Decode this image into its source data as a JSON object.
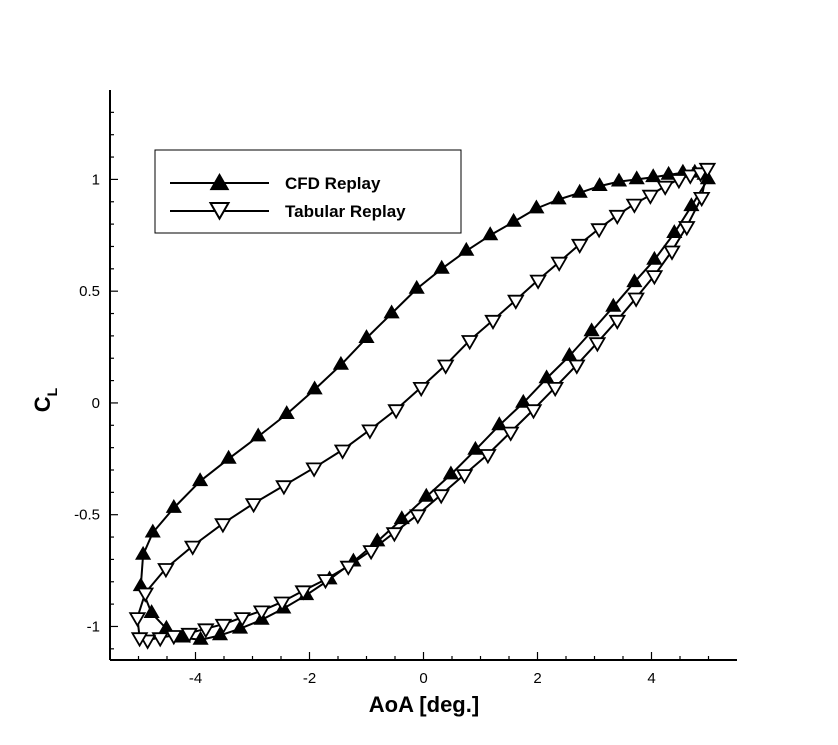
{
  "chart_data": {
    "type": "line",
    "xlabel": "AoA [deg.]",
    "ylabel": {
      "base": "C",
      "subscript": "L"
    },
    "xlim": [
      -5.5,
      5.5
    ],
    "ylim": [
      -1.15,
      1.4
    ],
    "x_ticks": [
      -4,
      -2,
      0,
      2,
      4
    ],
    "x_tick_labels": [
      "-4",
      "-2",
      "0",
      "2",
      "4"
    ],
    "y_ticks": [
      -1,
      -0.5,
      0,
      0.5,
      1
    ],
    "y_tick_labels": [
      "-1",
      "-0.5",
      "0",
      "0.5",
      "1"
    ],
    "grid": false,
    "legend_position": "top-left",
    "series": [
      {
        "name": "CFD Replay",
        "marker": "triangle-up-filled",
        "color": "#000000",
        "x": [
          4.99,
          4.7,
          4.4,
          4.05,
          3.7,
          3.33,
          2.95,
          2.56,
          2.16,
          1.75,
          1.33,
          0.91,
          0.48,
          0.05,
          -0.38,
          -0.81,
          -1.23,
          -1.65,
          -2.06,
          -2.46,
          -2.84,
          -3.22,
          -3.57,
          -3.91,
          -4.22,
          -4.51,
          -4.77,
          -4.96,
          -4.92,
          -4.75,
          -4.38,
          -3.92,
          -3.42,
          -2.9,
          -2.4,
          -1.91,
          -1.45,
          -1.0,
          -0.56,
          -0.12,
          0.32,
          0.75,
          1.17,
          1.58,
          1.98,
          2.37,
          2.74,
          3.09,
          3.43,
          3.74,
          4.03,
          4.3,
          4.55,
          4.76,
          4.93
        ],
        "y": [
          1.0,
          0.88,
          0.76,
          0.64,
          0.54,
          0.43,
          0.32,
          0.21,
          0.11,
          0.0,
          -0.1,
          -0.21,
          -0.32,
          -0.42,
          -0.52,
          -0.62,
          -0.71,
          -0.79,
          -0.86,
          -0.92,
          -0.97,
          -1.01,
          -1.04,
          -1.06,
          -1.05,
          -1.01,
          -0.94,
          -0.82,
          -0.68,
          -0.58,
          -0.47,
          -0.35,
          -0.25,
          -0.15,
          -0.05,
          0.06,
          0.17,
          0.29,
          0.4,
          0.51,
          0.6,
          0.68,
          0.75,
          0.81,
          0.87,
          0.91,
          0.94,
          0.97,
          0.99,
          1.0,
          1.01,
          1.02,
          1.03,
          1.03,
          1.02
        ]
      },
      {
        "name": "Tabular Replay",
        "marker": "triangle-down-open",
        "color": "#000000",
        "x": [
          4.88,
          4.62,
          4.36,
          4.05,
          3.73,
          3.4,
          3.05,
          2.69,
          2.31,
          1.93,
          1.53,
          1.13,
          0.72,
          0.31,
          -0.1,
          -0.51,
          -0.92,
          -1.32,
          -1.72,
          -2.11,
          -2.48,
          -2.84,
          -3.18,
          -3.51,
          -3.82,
          -4.11,
          -4.38,
          -4.62,
          -4.84,
          -4.98,
          -5.02,
          -4.88,
          -4.52,
          -4.05,
          -3.52,
          -2.98,
          -2.45,
          -1.92,
          -1.42,
          -0.94,
          -0.48,
          -0.04,
          0.39,
          0.81,
          1.22,
          1.62,
          2.01,
          2.38,
          2.74,
          3.08,
          3.4,
          3.7,
          3.98,
          4.24,
          4.48,
          4.68,
          4.86,
          4.98
        ],
        "y": [
          0.92,
          0.79,
          0.68,
          0.57,
          0.47,
          0.37,
          0.27,
          0.17,
          0.07,
          -0.03,
          -0.13,
          -0.23,
          -0.32,
          -0.41,
          -0.5,
          -0.58,
          -0.66,
          -0.73,
          -0.79,
          -0.84,
          -0.89,
          -0.93,
          -0.96,
          -0.99,
          -1.01,
          -1.03,
          -1.04,
          -1.05,
          -1.06,
          -1.05,
          -0.96,
          -0.85,
          -0.74,
          -0.64,
          -0.54,
          -0.45,
          -0.37,
          -0.29,
          -0.21,
          -0.12,
          -0.03,
          0.07,
          0.17,
          0.28,
          0.37,
          0.46,
          0.55,
          0.63,
          0.71,
          0.78,
          0.84,
          0.89,
          0.93,
          0.97,
          1.0,
          1.02,
          1.03,
          1.05
        ]
      }
    ]
  }
}
